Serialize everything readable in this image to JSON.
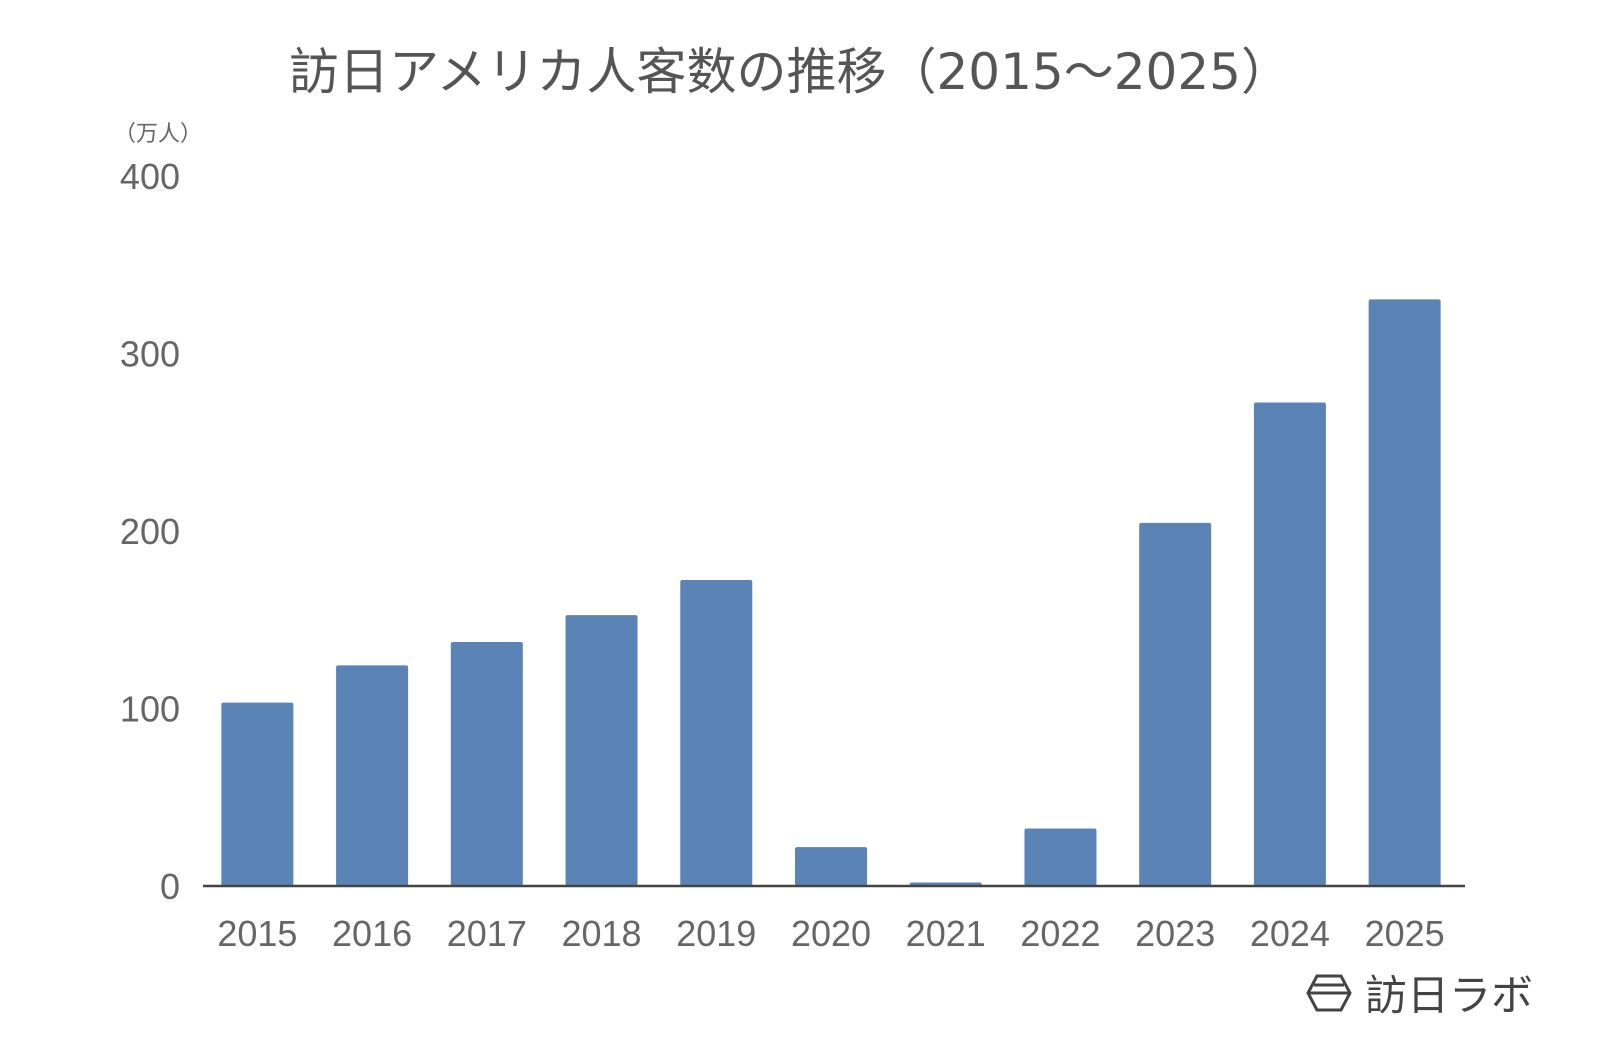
{
  "chart_data": {
    "type": "bar",
    "title": "訪日アメリカ人客数の推移（2015～2025）",
    "ylabel": "（万人）",
    "xlabel": "",
    "categories": [
      "2015",
      "2016",
      "2017",
      "2018",
      "2019",
      "2020",
      "2021",
      "2022",
      "2023",
      "2024",
      "2025"
    ],
    "values": [
      103.3,
      124.3,
      137.5,
      152.6,
      172.4,
      21.9,
      2.0,
      32.4,
      204.6,
      272.4,
      330.5
    ],
    "ylim": [
      0,
      400
    ],
    "yticks": [
      0,
      100,
      200,
      300,
      400
    ],
    "grid": false,
    "bar_color": "#5b84b6",
    "text_color": "#666666"
  },
  "watermark": {
    "text": "訪日ラボ",
    "icon": "hexagon-logo-icon"
  }
}
